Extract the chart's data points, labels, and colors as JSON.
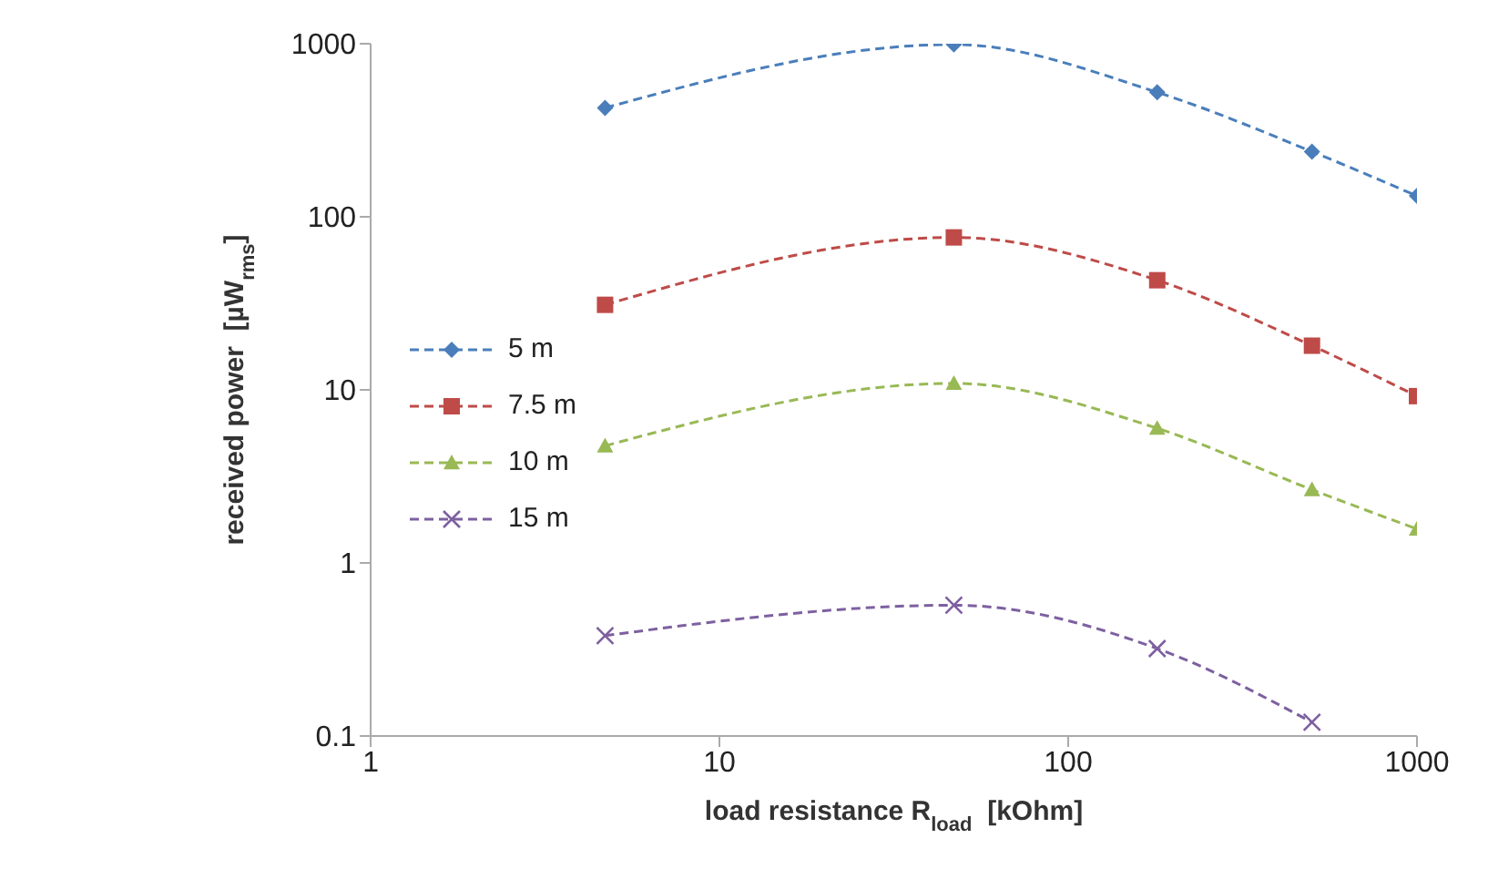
{
  "chart_data": {
    "type": "line",
    "xlabel": "load resistance R$_{load}$  [kOhm]",
    "ylabel": "received power  [µW$_{rms}$]",
    "x": [
      4.7,
      47,
      180,
      500,
      1000
    ],
    "xlim": [
      1,
      1000
    ],
    "xticks": [
      1,
      10,
      100,
      1000
    ],
    "ylim": [
      0.1,
      1000
    ],
    "yticks": [
      0.1,
      1,
      10,
      100,
      1000
    ],
    "log": "xy",
    "legend": "left",
    "line_style": "dashed",
    "series": [
      {
        "name": "5 m",
        "color": "#4a7ebb",
        "marker": "diamond",
        "values": [
          426,
          990,
          524,
          238,
          132
        ]
      },
      {
        "name": "7.5 m",
        "color": "#be4b48",
        "marker": "square",
        "values": [
          31,
          76,
          43,
          18,
          9.2
        ]
      },
      {
        "name": "10 m",
        "color": "#98b954",
        "marker": "triangle",
        "values": [
          4.75,
          10.9,
          6.0,
          2.65,
          1.57
        ]
      },
      {
        "name": "15 m",
        "color": "#7d60a0",
        "marker": "cross",
        "values": [
          0.38,
          0.57,
          0.32,
          0.12,
          null
        ]
      }
    ]
  }
}
